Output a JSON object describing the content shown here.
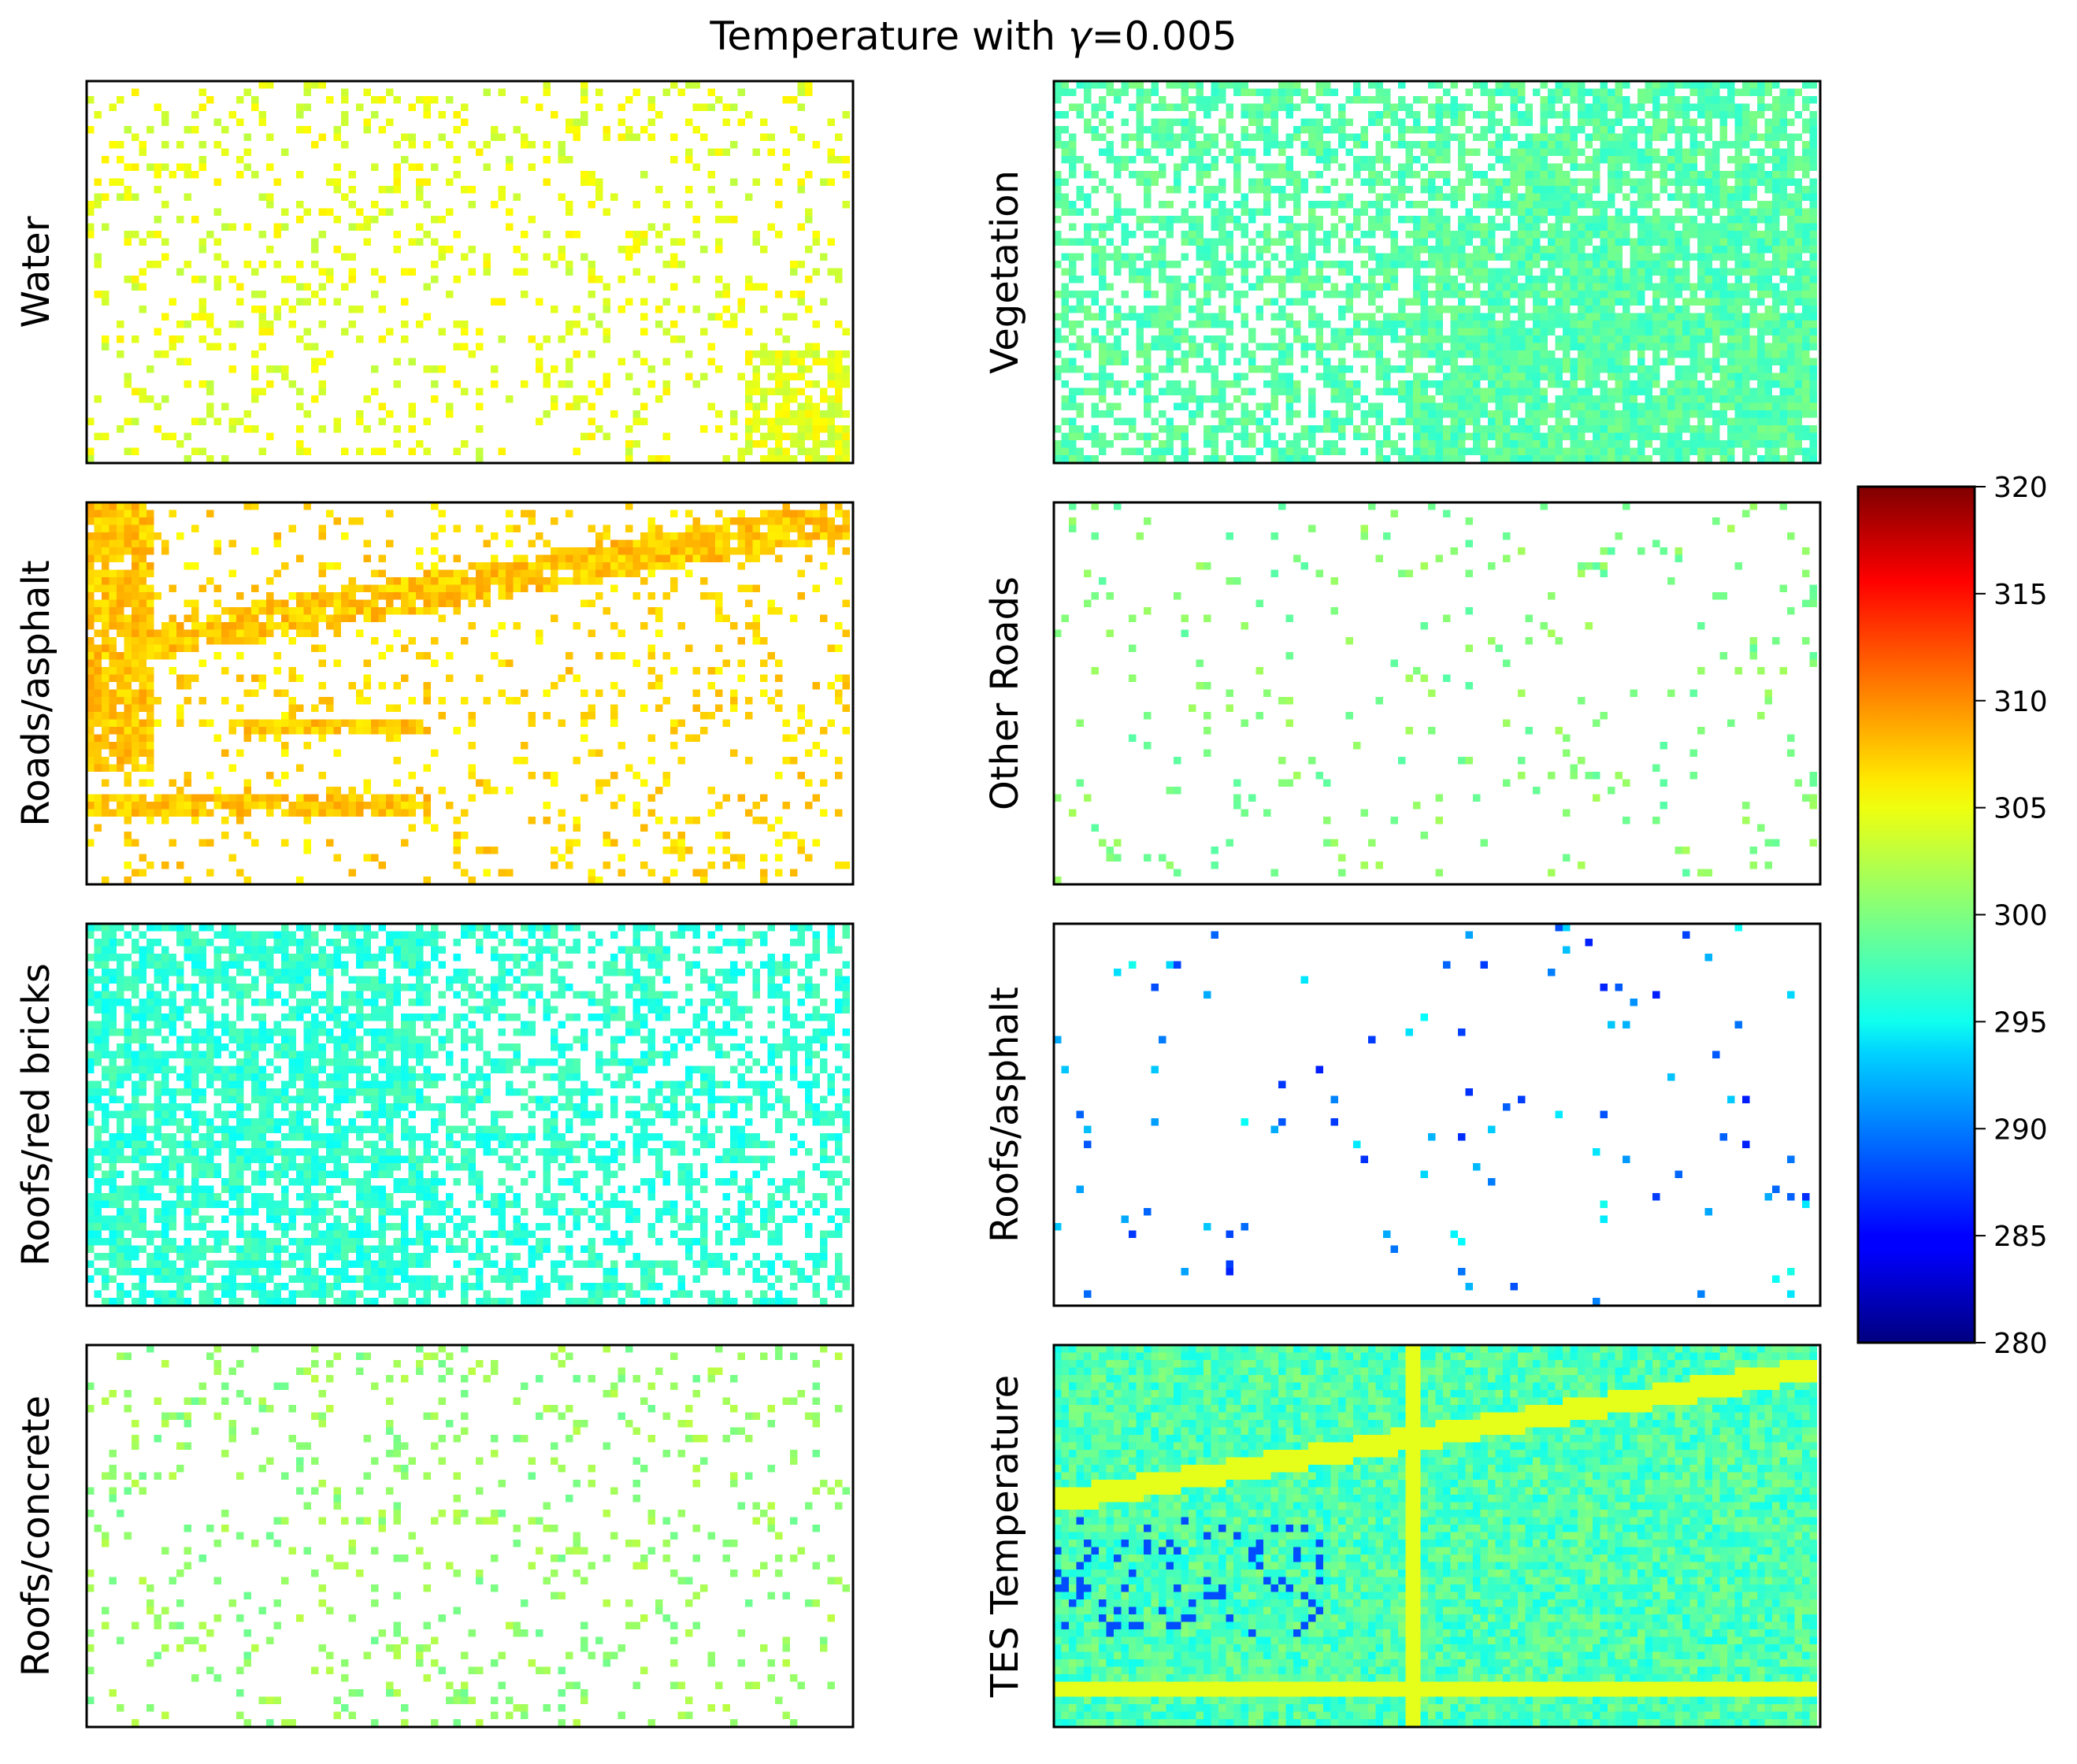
{
  "chart_data": {
    "type": "heatmap",
    "title_prefix": "Temperature with ",
    "title_symbol": "γ",
    "title_suffix": "=0.005",
    "panels": [
      {
        "label": "Water",
        "fill": 0.17,
        "tone": "#b8f55c",
        "patch": "bottom-right"
      },
      {
        "label": "Vegetation",
        "fill": 0.55,
        "tone": "#66f08a",
        "patch": "right"
      },
      {
        "label": "Roads/asphalt",
        "fill": 0.15,
        "tone": "#f5e21f",
        "patch": "roads"
      },
      {
        "label": "Other Roads",
        "fill": 0.05,
        "tone": "#7df07a",
        "patch": "none"
      },
      {
        "label": "Roofs/red bricks",
        "fill": 0.45,
        "tone": "#7bf0a8",
        "patch": "left"
      },
      {
        "label": "Roofs/asphalt",
        "fill": 0.02,
        "tone": "#2f7cff",
        "patch": "none"
      },
      {
        "label": "Roofs/concrete",
        "fill": 0.12,
        "tone": "#8ff080",
        "patch": "none"
      },
      {
        "label": "TES Temperature",
        "fill": 1.0,
        "tone": "#8ef07a",
        "patch": "full"
      }
    ],
    "colorbar": {
      "min": 280,
      "max": 320,
      "ticks": [
        280,
        285,
        290,
        295,
        300,
        305,
        310,
        315,
        320
      ],
      "colormap": "jet"
    }
  }
}
